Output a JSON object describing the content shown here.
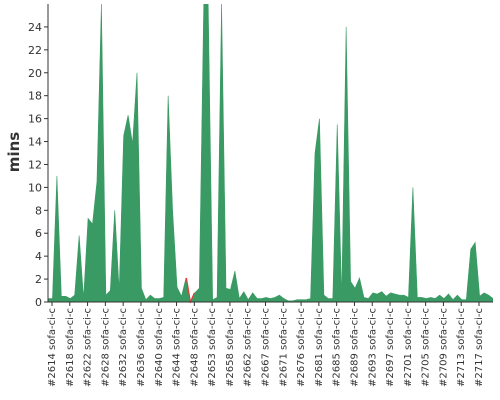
{
  "chart_data": {
    "type": "area",
    "title": "",
    "xlabel": "",
    "ylabel": "mins",
    "ylim": [
      0,
      26
    ],
    "yticks": [
      0,
      2,
      4,
      6,
      8,
      10,
      12,
      14,
      16,
      18,
      20,
      22,
      24
    ],
    "grid": false,
    "legend": "none",
    "series_color": "#3a9a64",
    "failure_color": "#e53935",
    "tick_labels": [
      "#2614 sofa-ci-c",
      "#2618 sofa-ci-c",
      "#2622 sofa-ci-c",
      "#2628 sofa-ci-c",
      "#2632 sofa-ci-c",
      "#2636 sofa-ci-c",
      "#2640 sofa-ci-c",
      "#2644 sofa-ci-c",
      "#2648 sofa-ci-c",
      "#2653 sofa-ci-c",
      "#2658 sofa-ci-c",
      "#2662 sofa-ci-c",
      "#2667 sofa-ci-c",
      "#2671 sofa-ci-c",
      "#2676 sofa-ci-c",
      "#2681 sofa-ci-c",
      "#2685 sofa-ci-c",
      "#2689 sofa-ci-c",
      "#2693 sofa-ci-c",
      "#2697 sofa-ci-c",
      "#2701 sofa-ci-c",
      "#2705 sofa-ci-c",
      "#2709 sofa-ci-c",
      "#2713 sofa-ci-c",
      "#2717 sofa-ci-c"
    ],
    "values": [
      0.3,
      0.3,
      11.0,
      0.5,
      0.5,
      0.3,
      0.6,
      5.8,
      0.3,
      7.3,
      6.8,
      10.5,
      28.0,
      0.6,
      1.0,
      8.0,
      1.0,
      14.5,
      16.3,
      13.8,
      20.0,
      1.2,
      0.2,
      0.6,
      0.3,
      0.3,
      0.4,
      18.0,
      8.0,
      1.3,
      0.5,
      2.1,
      0.0,
      0.8,
      1.2,
      28.0,
      28.0,
      0.2,
      0.4,
      28.0,
      1.2,
      1.1,
      2.7,
      0.3,
      0.9,
      0.2,
      0.8,
      0.3,
      0.3,
      0.4,
      0.3,
      0.4,
      0.6,
      0.3,
      0.1,
      0.1,
      0.2,
      0.2,
      0.2,
      0.3,
      13.0,
      16.0,
      0.6,
      0.3,
      0.3,
      15.5,
      0.3,
      24.0,
      1.8,
      1.2,
      2.1,
      0.4,
      0.3,
      0.8,
      0.7,
      0.9,
      0.5,
      0.8,
      0.7,
      0.6,
      0.6,
      0.4,
      10.0,
      0.4,
      0.4,
      0.3,
      0.4,
      0.3,
      0.6,
      0.3,
      0.7,
      0.2,
      0.6,
      0.2,
      0.2,
      4.6,
      5.2,
      0.5,
      0.8,
      0.6,
      0.3
    ],
    "failures": [
      32
    ]
  }
}
